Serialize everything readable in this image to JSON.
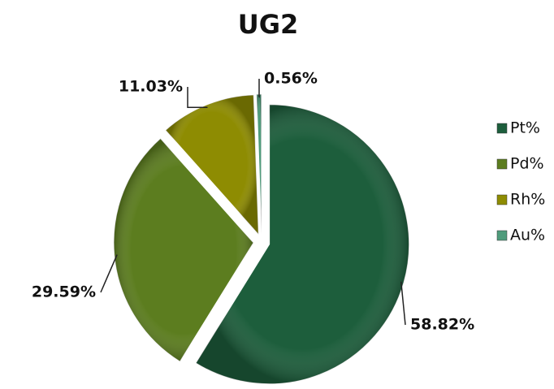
{
  "chart_data": {
    "type": "pie",
    "title": "UG2",
    "categories": [
      "Pt%",
      "Pd%",
      "Rh%",
      "Au%"
    ],
    "values": [
      58.82,
      29.59,
      11.03,
      0.56
    ],
    "value_labels": [
      "58.82%",
      "29.59%",
      "11.03%",
      "0.56%"
    ],
    "colors": [
      "#1d5e3c",
      "#5c7d1f",
      "#8e8c02",
      "#4f9c7c"
    ],
    "legend": "right"
  }
}
